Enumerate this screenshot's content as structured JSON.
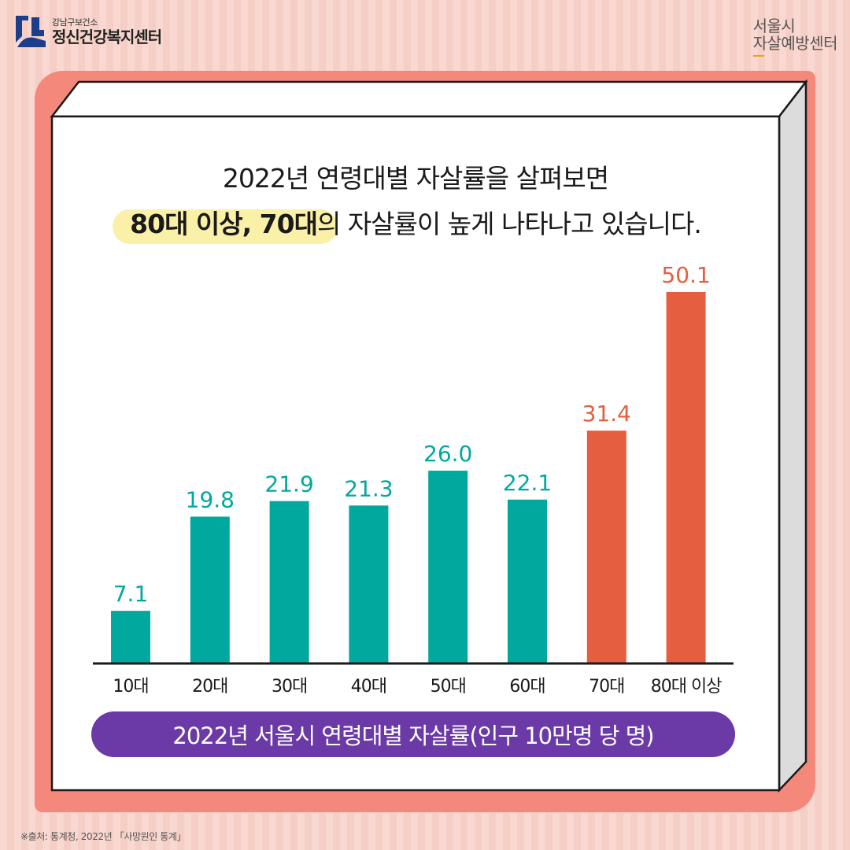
{
  "logo_left": {
    "sub": "강남구보건소",
    "main": "정신건강복지센터"
  },
  "logo_right": {
    "line1": "서울시",
    "line2": "자살예방센터"
  },
  "headline": {
    "line1": "2022년 연령대별 자살률을 살펴보면",
    "line2_highlight": "80대 이상, 70대",
    "line2_rest": "의 자살률이 높게 나타나고 있습니다."
  },
  "chart_data": {
    "type": "bar",
    "title": "2022년 서울시 연령대별 자살률(인구 10만명 당 명)",
    "categories": [
      "10대",
      "20대",
      "30대",
      "40대",
      "50대",
      "60대",
      "70대",
      "80대 이상"
    ],
    "values": [
      7.1,
      19.8,
      21.9,
      21.3,
      26.0,
      22.1,
      31.4,
      50.1
    ],
    "value_labels": [
      "7.1",
      "19.8",
      "21.9",
      "21.3",
      "26.0",
      "22.1",
      "31.4",
      "50.1"
    ],
    "ylim": [
      0,
      50.1
    ],
    "colors": {
      "default": "#00a89d",
      "highlight": "#e55e3f",
      "highlight_categories": [
        "70대",
        "80대 이상"
      ]
    },
    "grid": false
  },
  "footnote": "※출처: 통계청, 2022년 「사망원인 통계」"
}
